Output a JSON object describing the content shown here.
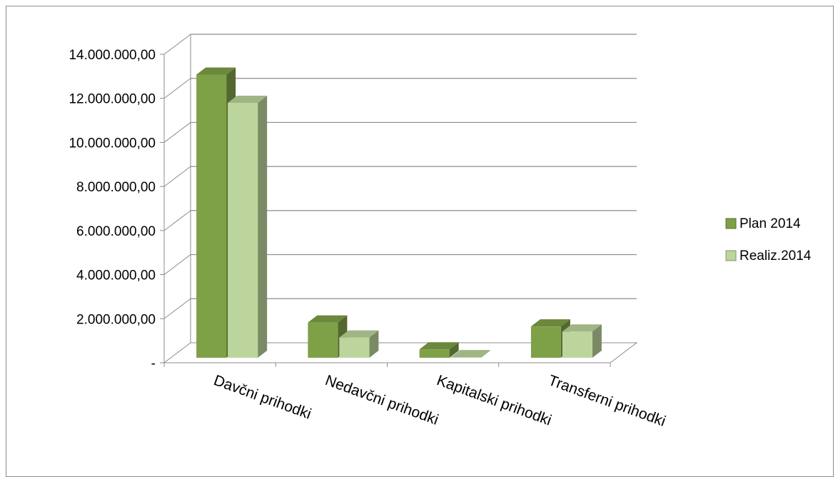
{
  "chart_data": {
    "type": "bar",
    "view": "3d-clustered-column",
    "categories": [
      "Davčni prihodki",
      "Nedavčni prihodki",
      "Kapitalski prihodki",
      "Transferni prihodki"
    ],
    "series": [
      {
        "name": "Plan 2014",
        "values": [
          12850000,
          1600000,
          380000,
          1420000
        ],
        "color": "#7ea047"
      },
      {
        "name": "Realiz.2014",
        "values": [
          11570000,
          920000,
          30000,
          1190000
        ],
        "color": "#bcd59c"
      }
    ],
    "y_ticks": [
      "-",
      "2.000.000,00",
      "4.000.000,00",
      "6.000.000,00",
      "8.000.000,00",
      "10.000.000,00",
      "12.000.000,00",
      "14.000.000,00"
    ],
    "ylim": [
      0,
      14000000
    ],
    "grid": true,
    "legend_position": "right"
  }
}
